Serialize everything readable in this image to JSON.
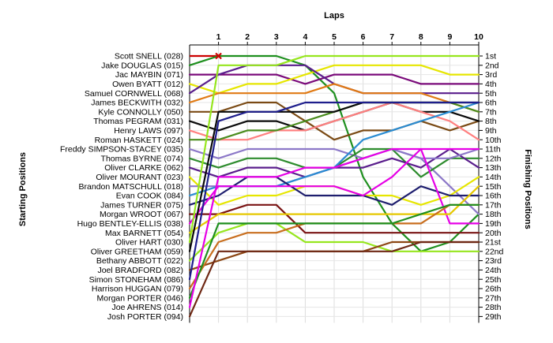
{
  "chart_data": {
    "type": "line",
    "title": "Laps",
    "ylabel_left": "Starting Positions",
    "ylabel_right": "Finishing Positions",
    "laps": [
      1,
      2,
      3,
      4,
      5,
      6,
      7,
      8,
      9,
      10
    ],
    "finishing_labels": [
      "1st",
      "2nd",
      "3rd",
      "4th",
      "5th",
      "6th",
      "7th",
      "8th",
      "9th",
      "10th",
      "11th",
      "12th",
      "13th",
      "14th",
      "15th",
      "16th",
      "17th",
      "18th",
      "19th",
      "20th",
      "21st",
      "22nd",
      "23rd",
      "24th",
      "25th",
      "26th",
      "27th",
      "28th",
      "29th"
    ],
    "series": [
      {
        "name": "Scott SNELL (028)",
        "color": "#cc0000",
        "positions": [
          1,
          null,
          null,
          null,
          null,
          null,
          null,
          null,
          null,
          null,
          null
        ],
        "retired_lap": 1
      },
      {
        "name": "Jake DOUGLAS (015)",
        "color": "#1e8f1e",
        "positions": [
          2,
          1,
          1,
          1,
          2,
          5,
          14,
          19,
          22,
          21,
          18
        ]
      },
      {
        "name": "Jac MAYBIN (071)",
        "color": "#7a0a7a",
        "positions": [
          3,
          3,
          3,
          3,
          4,
          3,
          3,
          3,
          4,
          4,
          4
        ]
      },
      {
        "name": "Owen BYATT (012)",
        "color": "#e6e600",
        "positions": [
          4,
          5,
          4,
          4,
          3,
          2,
          2,
          2,
          2,
          3,
          3
        ]
      },
      {
        "name": "Samuel CORNWELL (068)",
        "color": "#5a1e8c",
        "positions": [
          5,
          3,
          2,
          2,
          2,
          4,
          5,
          5,
          5,
          5,
          5
        ]
      },
      {
        "name": "James BECKWITH (032)",
        "color": "#e07a14",
        "positions": [
          6,
          5,
          5,
          5,
          5,
          4,
          5,
          5,
          5,
          6,
          7
        ]
      },
      {
        "name": "Kyle CONNOLLY (050)",
        "color": "#7a4a14",
        "positions": [
          7,
          7,
          6,
          6,
          8,
          10,
          9,
          9,
          8,
          9,
          8
        ]
      },
      {
        "name": "Thomas PEGRAM (031)",
        "color": "#0a0a0a",
        "positions": [
          8,
          9,
          8,
          8,
          9,
          8,
          7,
          6,
          7,
          7,
          8
        ]
      },
      {
        "name": "Henry LAWS (097)",
        "color": "#ff8080",
        "positions": [
          9,
          10,
          10,
          9,
          9,
          8,
          7,
          6,
          7,
          8,
          10
        ]
      },
      {
        "name": "Roman HASKETT (024)",
        "color": "#4a8c1e",
        "positions": [
          10,
          10,
          9,
          9,
          8,
          7,
          6,
          6,
          6,
          6,
          7
        ]
      },
      {
        "name": "Freddy SIMPSON-STACEY (035)",
        "color": "#8c78c8",
        "positions": [
          11,
          12,
          11,
          11,
          11,
          11,
          12,
          11,
          12,
          15,
          18
        ]
      },
      {
        "name": "Thomas BYRNE (074)",
        "color": "#2e8c2e",
        "positions": [
          12,
          13,
          12,
          12,
          13,
          13,
          11,
          11,
          14,
          12,
          12
        ]
      },
      {
        "name": "Oliver CLARKE (062)",
        "color": "#5a1e8c",
        "positions": [
          13,
          14,
          13,
          13,
          14,
          13,
          13,
          12,
          13,
          11,
          13
        ]
      },
      {
        "name": "Oliver MOURANT (023)",
        "color": "#e6e600",
        "positions": [
          14,
          17,
          16,
          16,
          15,
          15,
          16,
          16,
          17,
          16,
          14
        ]
      },
      {
        "name": "Brandon MATSCHULL (018)",
        "color": "#8c78c8",
        "positions": [
          15,
          15,
          15,
          15,
          14,
          13,
          12,
          11,
          12,
          12,
          11
        ]
      },
      {
        "name": "Evan COOK (084)",
        "color": "#2a8cd2",
        "positions": [
          16,
          15,
          15,
          15,
          14,
          13,
          10,
          9,
          8,
          7,
          6
        ]
      },
      {
        "name": "James TURNER (075)",
        "color": "#1e1e6e",
        "positions": [
          17,
          16,
          14,
          14,
          16,
          16,
          16,
          17,
          15,
          16,
          16
        ]
      },
      {
        "name": "Morgan WROOT (067)",
        "color": "#7a1414",
        "positions": [
          18,
          18,
          17,
          17,
          20,
          20,
          20,
          20,
          20,
          20,
          20
        ]
      },
      {
        "name": "Hugo BENTLEY-ELLIS (038)",
        "color": "#e600e6",
        "positions": [
          19,
          15,
          15,
          15,
          15,
          15,
          16,
          14,
          11,
          19,
          19
        ]
      },
      {
        "name": "Max BARNETT (054)",
        "color": "#e6c800",
        "positions": [
          20,
          18,
          18,
          18,
          18,
          18,
          18,
          18,
          18,
          18,
          15
        ]
      },
      {
        "name": "Oliver HART (030)",
        "color": "#96e61e",
        "positions": [
          21,
          2,
          2,
          2,
          1,
          1,
          1,
          1,
          1,
          1,
          1
        ]
      },
      {
        "name": "Oliver GREETHAM (059)",
        "color": "#0a0a0a",
        "positions": [
          22,
          7,
          7,
          7,
          7,
          7,
          6,
          6,
          6,
          6,
          6
        ]
      },
      {
        "name": "Bethany ABBOTT (022)",
        "color": "#96e61e",
        "positions": [
          23,
          20,
          19,
          19,
          21,
          21,
          21,
          22,
          22,
          22,
          22
        ]
      },
      {
        "name": "Joel BRADFORD (082)",
        "color": "#8c4614",
        "positions": [
          24,
          23,
          22,
          22,
          22,
          22,
          22,
          21,
          21,
          21,
          21
        ]
      },
      {
        "name": "Simon STONEHAM (086)",
        "color": "#1e1e8c",
        "positions": [
          25,
          8,
          7,
          7,
          6,
          6,
          6,
          6,
          6,
          6,
          6
        ]
      },
      {
        "name": "Harrison HUGGAN (079)",
        "color": "#c86e1e",
        "positions": [
          26,
          21,
          20,
          20,
          19,
          19,
          19,
          19,
          19,
          17,
          17
        ]
      },
      {
        "name": "Morgan PORTER (046)",
        "color": "#1e8f1e",
        "positions": [
          27,
          19,
          19,
          19,
          19,
          19,
          19,
          19,
          18,
          17,
          17
        ]
      },
      {
        "name": "Joe AHRENS (014)",
        "color": "#e600e6",
        "positions": [
          28,
          14,
          14,
          14,
          13,
          13,
          12,
          11,
          11,
          11,
          11
        ]
      },
      {
        "name": "Josh PORTER (094)",
        "color": "#6e2814",
        "positions": [
          29,
          22,
          22,
          22,
          22,
          22,
          22,
          22,
          21,
          21,
          21
        ]
      }
    ]
  }
}
